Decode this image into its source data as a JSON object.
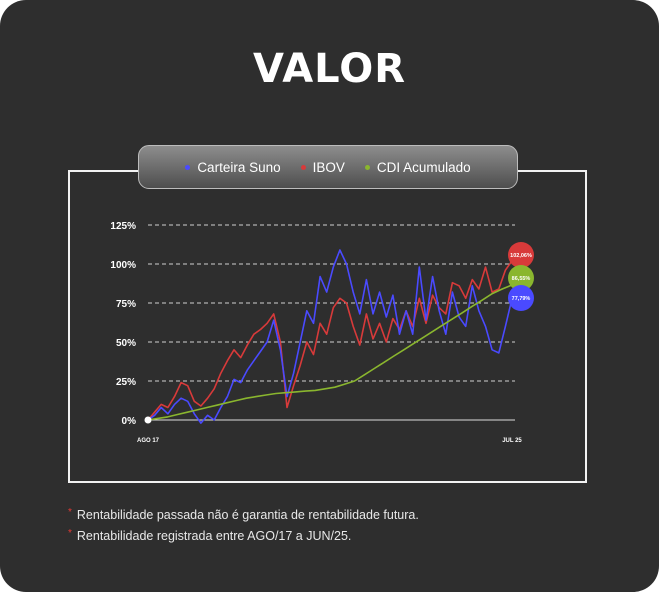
{
  "title": "VALOR",
  "chart_data": {
    "type": "line",
    "yticks": [
      "125%",
      "100%",
      "75%",
      "50%",
      "25%",
      "0%"
    ],
    "ylim": [
      0,
      125
    ],
    "x_labels": [
      "AGO 17",
      "JUL 25"
    ],
    "legend_position": "top",
    "series": [
      {
        "name": "Carteira Suno",
        "color": "#4a4aff",
        "end_label": "77,79%",
        "values": [
          0,
          3,
          8,
          4,
          10,
          14,
          12,
          4,
          -2,
          3,
          0,
          8,
          15,
          26,
          24,
          32,
          38,
          44,
          50,
          64,
          45,
          15,
          30,
          50,
          70,
          62,
          92,
          82,
          98,
          109,
          100,
          82,
          68,
          90,
          68,
          82,
          66,
          80,
          55,
          70,
          55,
          98,
          64,
          92,
          70,
          55,
          82,
          66,
          60,
          86,
          70,
          60,
          45,
          43,
          60,
          77.79
        ]
      },
      {
        "name": "IBOV",
        "color": "#d83a3a",
        "end_label": "102,06%",
        "values": [
          0,
          5,
          10,
          8,
          15,
          24,
          22,
          12,
          9,
          14,
          20,
          30,
          38,
          45,
          40,
          48,
          55,
          58,
          62,
          68,
          50,
          8,
          22,
          35,
          50,
          42,
          62,
          55,
          72,
          78,
          75,
          60,
          48,
          68,
          52,
          62,
          50,
          65,
          58,
          70,
          60,
          78,
          62,
          80,
          72,
          68,
          88,
          86,
          78,
          90,
          84,
          98,
          82,
          84,
          96,
          102.06
        ]
      },
      {
        "name": "CDI Acumulado",
        "color": "#8ab62e",
        "end_label": "86,55%",
        "values": [
          0,
          1,
          2,
          3.5,
          5,
          6.5,
          8,
          9.5,
          11,
          12.5,
          14,
          15,
          16,
          17,
          17.5,
          18,
          18.5,
          19,
          20,
          21,
          23,
          25,
          29,
          33,
          37,
          41,
          45,
          49,
          53,
          57,
          61,
          65,
          69,
          73,
          77,
          81,
          84,
          86.55
        ]
      }
    ]
  },
  "footnotes": [
    "Rentabilidade passada não é garantia de rentabilidade futura.",
    "Rentabilidade registrada entre AGO/17 a JUN/25."
  ],
  "footnote_marker": "*"
}
